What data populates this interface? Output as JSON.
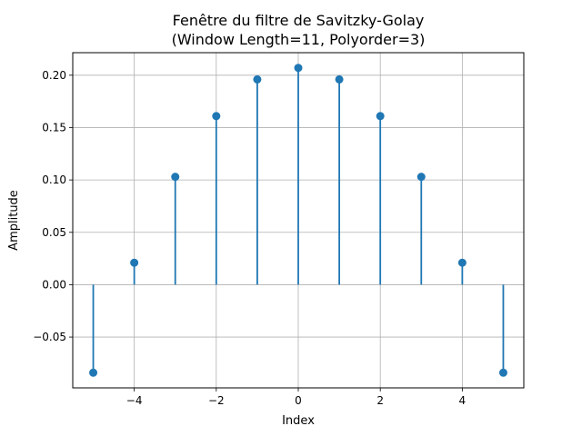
{
  "chart_data": {
    "type": "stem",
    "title_line1": "Fenêtre du filtre de Savitzky-Golay",
    "title_line2": "(Window Length=11, Polyorder=3)",
    "xlabel": "Index",
    "ylabel": "Amplitude",
    "x": [
      -5,
      -4,
      -3,
      -2,
      -1,
      0,
      1,
      2,
      3,
      4,
      5
    ],
    "y": [
      -0.084,
      0.021,
      0.103,
      0.161,
      0.196,
      0.207,
      0.196,
      0.161,
      0.103,
      0.021,
      -0.084
    ],
    "xlim": [
      -5.5,
      5.5
    ],
    "ylim": [
      -0.0985,
      0.2215
    ],
    "xticks": [
      -4,
      -2,
      0,
      2,
      4
    ],
    "xtick_labels": [
      "−4",
      "−2",
      "0",
      "2",
      "4"
    ],
    "yticks": [
      -0.05,
      0.0,
      0.05,
      0.1,
      0.15,
      0.2
    ],
    "ytick_labels": [
      "−0.05",
      "0.00",
      "0.05",
      "0.10",
      "0.15",
      "0.20"
    ],
    "grid": true,
    "color": "#1f77b4"
  }
}
